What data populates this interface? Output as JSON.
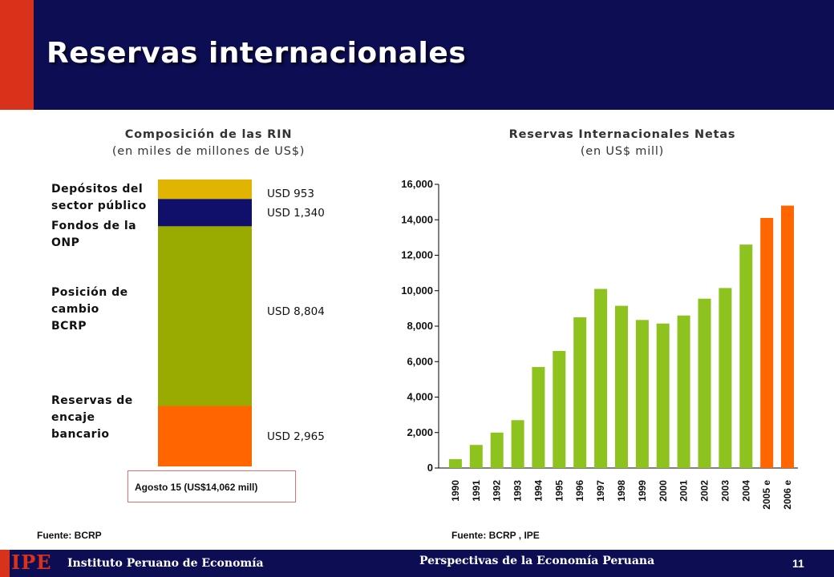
{
  "slide": {
    "title": "Reservas internacionales",
    "page_number": "11",
    "footer_logo": "IPE",
    "footer_institute": "Instituto Peruano de Economía",
    "footer_center": "Perspectivas de la Economía Peruana",
    "colors": {
      "navy": "#0d0d54",
      "red": "#d8331a",
      "green": "#8dc21f",
      "orange": "#ff6600",
      "olive": "#9aab00",
      "gold": "#e0b400"
    }
  },
  "left_chart": {
    "title": "Composición de las RIN",
    "subtitle": "(en miles de millones de US$)",
    "note": "Agosto 15 (US$14,062 mill)",
    "source": "Fuente: BCRP",
    "categories": [
      {
        "line1": "Depósitos del",
        "line2": "sector público",
        "line3": ""
      },
      {
        "line1": "Fondos de la",
        "line2": "ONP",
        "line3": ""
      },
      {
        "line1": "Posición de",
        "line2": "cambio",
        "line3": "BCRP"
      },
      {
        "line1": "Reservas de",
        "line2": "encaje",
        "line3": "bancario"
      }
    ]
  },
  "right_chart": {
    "title": "Reservas Internacionales Netas",
    "subtitle": "(en US$ mill)",
    "source": "Fuente: BCRP , IPE"
  },
  "chart_data": [
    {
      "type": "bar",
      "stacked": true,
      "title": "Composición de las RIN",
      "subtitle": "(en miles de millones de US$)",
      "segments": [
        {
          "category": "Depósitos del sector público",
          "label": "USD 953",
          "value": 953,
          "color": "#e0b400"
        },
        {
          "category": "Fondos de la ONP",
          "label": "USD 1,340",
          "value": 1340,
          "color": "#10106a"
        },
        {
          "category": "Posición de cambio BCRP",
          "label": "USD 8,804",
          "value": 8804,
          "color": "#9aab00"
        },
        {
          "category": "Reservas de encaje bancario",
          "label": "USD 2,965",
          "value": 2965,
          "color": "#ff6600"
        }
      ]
    },
    {
      "type": "bar",
      "title": "Reservas Internacionales Netas",
      "subtitle": "(en US$ mill)",
      "categories": [
        "1990",
        "1991",
        "1992",
        "1993",
        "1994",
        "1995",
        "1996",
        "1997",
        "1998",
        "1999",
        "2000",
        "2001",
        "2002",
        "2003",
        "2004",
        "2005 e",
        "2006 e"
      ],
      "values": [
        500,
        1300,
        2000,
        2700,
        5700,
        6600,
        8500,
        10100,
        9150,
        8350,
        8150,
        8600,
        9550,
        10150,
        12600,
        14100,
        14800
      ],
      "colors": [
        "#8dc21f",
        "#8dc21f",
        "#8dc21f",
        "#8dc21f",
        "#8dc21f",
        "#8dc21f",
        "#8dc21f",
        "#8dc21f",
        "#8dc21f",
        "#8dc21f",
        "#8dc21f",
        "#8dc21f",
        "#8dc21f",
        "#8dc21f",
        "#8dc21f",
        "#ff6600",
        "#ff6600"
      ],
      "yticks": [
        "0",
        "2,000",
        "4,000",
        "6,000",
        "8,000",
        "10,000",
        "12,000",
        "14,000",
        "16,000"
      ],
      "ylim": [
        0,
        16000
      ]
    }
  ]
}
